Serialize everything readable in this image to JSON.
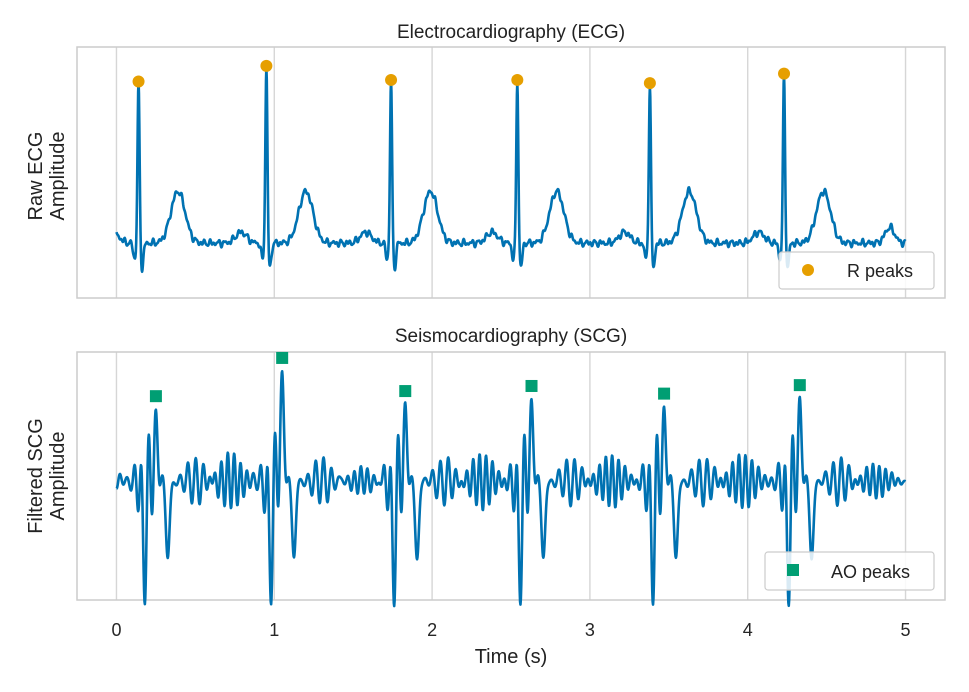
{
  "chart_data": [
    {
      "type": "line",
      "title": "Electrocardiography (ECG)",
      "ylabel_lines": [
        "Raw ECG",
        "Amplitude"
      ],
      "xlabel": "",
      "xlim": [
        -0.25,
        5.25
      ],
      "ylim": [
        -0.35,
        1.25
      ],
      "xticks": [
        0,
        1,
        2,
        3,
        4,
        5
      ],
      "grid": "x",
      "legend": {
        "position": "bottom-right",
        "label": "R peaks",
        "marker": "circle"
      },
      "colors": {
        "line": "#0072b2",
        "peaks": "#e69f00"
      },
      "beat_times": [
        0.14,
        0.95,
        1.74,
        2.54,
        3.38,
        4.23
      ],
      "series": [
        {
          "name": "ECG",
          "kind": "signal"
        },
        {
          "name": "R peaks",
          "kind": "markers",
          "x": [
            0.14,
            0.95,
            1.74,
            2.54,
            3.38,
            4.23
          ],
          "y": [
            1.03,
            1.13,
            1.04,
            1.04,
            1.02,
            1.08
          ]
        }
      ]
    },
    {
      "type": "line",
      "title": "Seismocardiography (SCG)",
      "ylabel_lines": [
        "Filtered SCG",
        "Amplitude"
      ],
      "xlabel": "Time (s)",
      "xlim": [
        -0.25,
        5.25
      ],
      "ylim": [
        -1.4,
        1.52
      ],
      "xticks": [
        0,
        1,
        2,
        3,
        4,
        5
      ],
      "grid": "x",
      "legend": {
        "position": "bottom-right",
        "label": "AO peaks",
        "marker": "square"
      },
      "colors": {
        "line": "#0072b2",
        "peaks": "#009e73"
      },
      "beat_times": [
        0.14,
        0.95,
        1.74,
        2.54,
        3.38,
        4.23
      ],
      "series": [
        {
          "name": "SCG",
          "kind": "signal"
        },
        {
          "name": "AO peaks",
          "kind": "markers",
          "x": [
            0.25,
            1.05,
            1.83,
            2.63,
            3.47,
            4.33
          ],
          "y": [
            1.0,
            1.45,
            1.06,
            1.12,
            1.03,
            1.13
          ]
        }
      ]
    }
  ]
}
